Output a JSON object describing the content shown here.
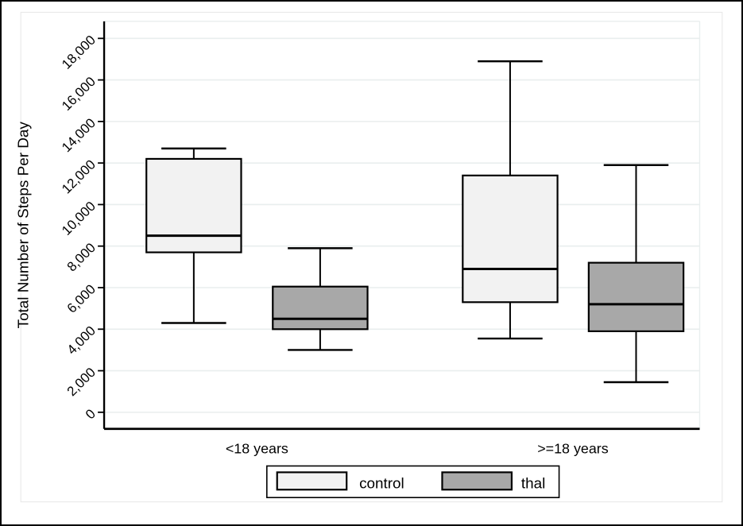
{
  "figure": {
    "background": "#ffffff",
    "border_color": "#000000"
  },
  "chart_data": {
    "type": "boxplot",
    "title": "",
    "xlabel": "",
    "ylabel": "Total Number of Steps Per Day",
    "ylim": [
      0,
      18800
    ],
    "yticks": [
      0,
      2000,
      4000,
      6000,
      8000,
      10000,
      12000,
      14000,
      16000,
      18000
    ],
    "ytick_labels": [
      "0",
      "2,000",
      "4,000",
      "6,000",
      "8,000",
      "10,000",
      "12,000",
      "14,000",
      "16,000",
      "18,000"
    ],
    "grid": true,
    "categories": [
      "<18 years",
      ">=18 years"
    ],
    "series": [
      {
        "name": "control",
        "fill": "#f2f2f2",
        "boxes": [
          {
            "category": "<18 years",
            "whisker_low": 4300,
            "q1": 7700,
            "median": 8500,
            "q3": 12200,
            "whisker_high": 12700
          },
          {
            "category": ">=18 years",
            "whisker_low": 3550,
            "q1": 5300,
            "median": 6900,
            "q3": 11400,
            "whisker_high": 16900
          }
        ]
      },
      {
        "name": "thal",
        "fill": "#a8a8a8",
        "boxes": [
          {
            "category": "<18 years",
            "whisker_low": 3000,
            "q1": 4000,
            "median": 4500,
            "q3": 6050,
            "whisker_high": 7900
          },
          {
            "category": ">=18 years",
            "whisker_low": 1450,
            "q1": 3900,
            "median": 5200,
            "q3": 7200,
            "whisker_high": 11900
          }
        ]
      }
    ],
    "legend": {
      "position": "bottom",
      "entries": [
        {
          "label": "control",
          "color": "#f2f2f2"
        },
        {
          "label": "thal",
          "color": "#a8a8a8"
        }
      ]
    },
    "colors": {
      "axis": "#000000",
      "box_border": "#000000",
      "gridline": "#e9eeee",
      "graph_outline": "#e6e6e6"
    }
  }
}
